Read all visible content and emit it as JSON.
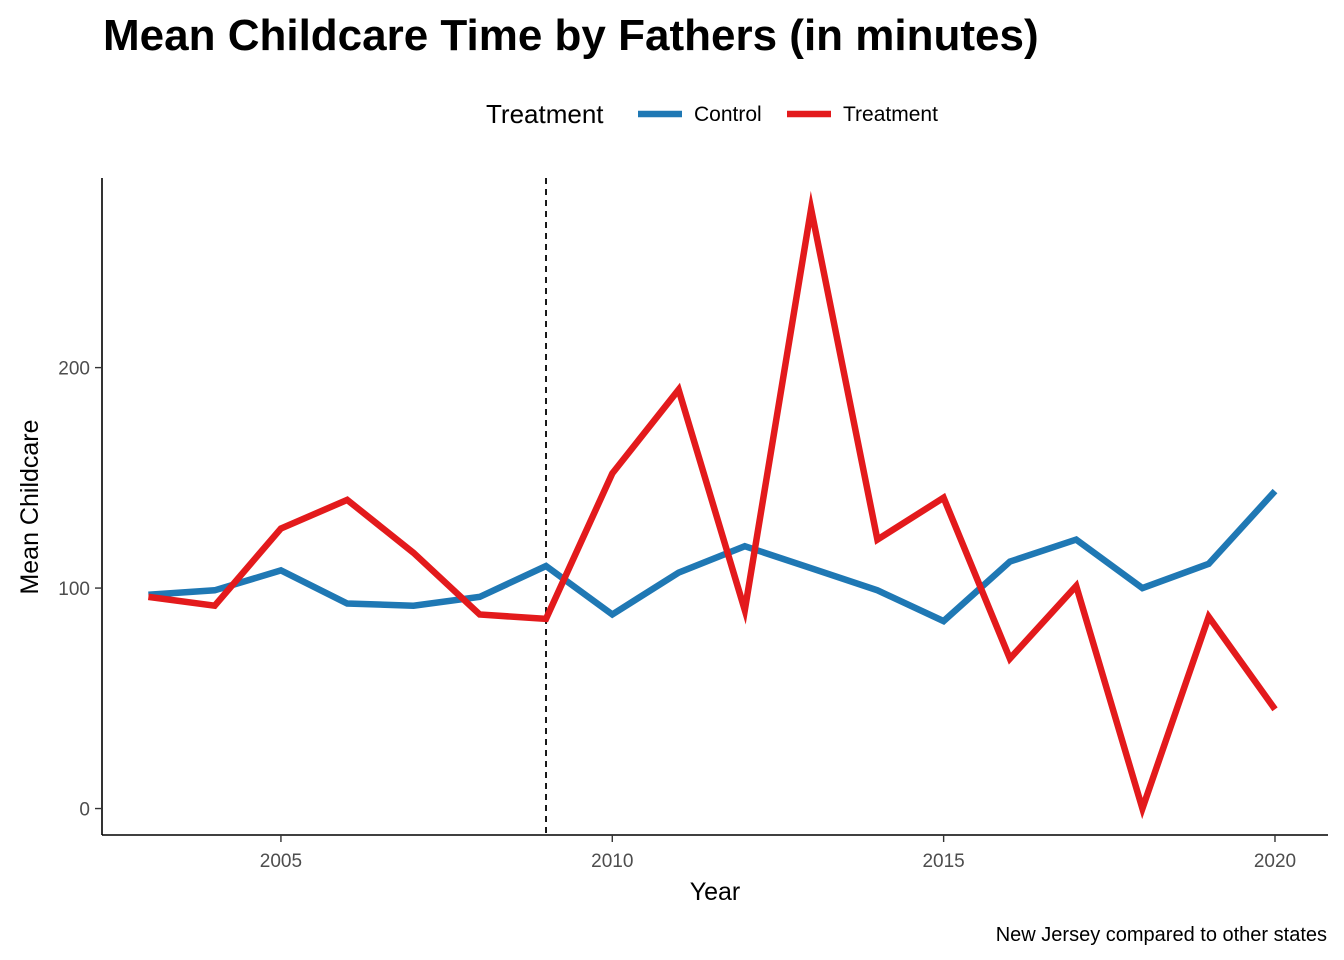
{
  "chart_data": {
    "type": "line",
    "title": "Mean Childcare Time by Fathers (in minutes)",
    "xlabel": "Year",
    "ylabel": "Mean Childcare",
    "caption": "New Jersey compared to other states",
    "legend": {
      "title": "Treatment",
      "position": "top"
    },
    "x_ticks": [
      "2005",
      "2010",
      "2015",
      "2020"
    ],
    "y_ticks": [
      "0",
      "100",
      "200"
    ],
    "xlim": [
      2002.3,
      2020.8
    ],
    "ylim": [
      -12,
      286
    ],
    "grid": false,
    "reference_line": {
      "x": 2009,
      "style": "dashed"
    },
    "x": [
      2003,
      2004,
      2005,
      2006,
      2007,
      2008,
      2009,
      2010,
      2011,
      2012,
      2013,
      2014,
      2015,
      2016,
      2017,
      2018,
      2019,
      2020
    ],
    "series": [
      {
        "name": "Control",
        "color": "#1f78b4",
        "values": [
          97,
          99,
          108,
          93,
          92,
          96,
          110,
          88,
          107,
          119,
          109,
          99,
          85,
          112,
          122,
          100,
          111,
          144
        ]
      },
      {
        "name": "Treatment",
        "color": "#e31a1c",
        "values": [
          96,
          92,
          127,
          140,
          116,
          88,
          86,
          152,
          190,
          90,
          272,
          122,
          141,
          68,
          101,
          0,
          87,
          45
        ]
      }
    ]
  }
}
